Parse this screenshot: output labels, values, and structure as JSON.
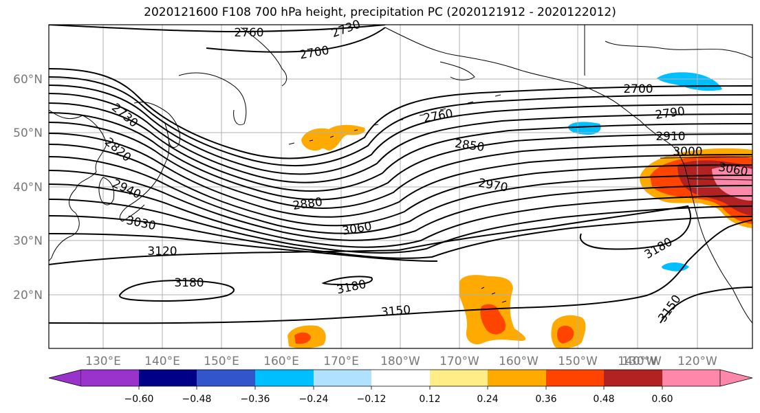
{
  "title": "2020121600 F108 700 hPa height, precipitation PC (2020121912 - 2020122012)",
  "map": {
    "lat_labels": [
      "60°N",
      "50°N",
      "40°N",
      "30°N",
      "20°N"
    ],
    "lon_labels": [
      "130°E",
      "140°E",
      "150°E",
      "160°E",
      "170°E",
      "180°W",
      "170°W",
      "160°W",
      "150°W",
      "140°W",
      "130°W",
      "120°W"
    ],
    "contour_labels": [
      "2760",
      "2730",
      "2700",
      "2730",
      "2820",
      "2940",
      "3030",
      "3120",
      "3180",
      "2880",
      "3060",
      "3180",
      "3150",
      "2760",
      "2850",
      "2970",
      "2700",
      "2790",
      "2910",
      "3000",
      "3060",
      "3180",
      "3150"
    ],
    "colors": {
      "contour": "#000000",
      "coast": "#000000",
      "grid": "#b0b0b0"
    }
  },
  "colorbar": {
    "ticks": [
      "−0.60",
      "−0.48",
      "−0.36",
      "−0.24",
      "−0.12",
      "0.12",
      "0.24",
      "0.36",
      "0.48",
      "0.60"
    ],
    "colors": [
      "#9933cc",
      "#000088",
      "#3355cc",
      "#00bfff",
      "#b0e2ff",
      "#ffffff",
      "#ffee88",
      "#ffaa00",
      "#ff4400",
      "#b22222",
      "#ff88aa"
    ]
  }
}
